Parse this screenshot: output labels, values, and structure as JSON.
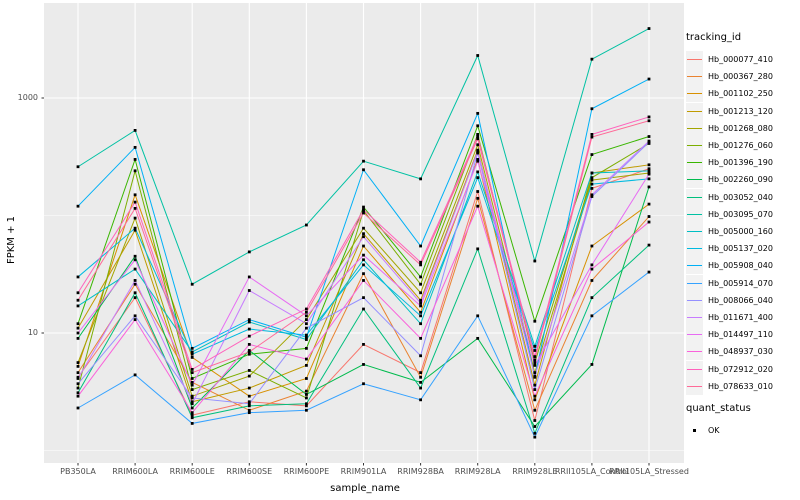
{
  "chart": {
    "y_axis_title": "FPKM + 1",
    "x_axis_title": "sample_name",
    "panel_background": "#EBEBEB",
    "gridline_color": "#FFFFFF",
    "tick_label_color": "#4D4D4D"
  },
  "legend": {
    "tracking_title": "tracking_id",
    "quant_title": "quant_status",
    "quant_items": [
      "OK"
    ]
  },
  "chart_data": {
    "type": "line",
    "title": "",
    "xlabel": "sample_name",
    "ylabel": "FPKM + 1",
    "y_scale": "log10",
    "y_tick_values": [
      10,
      1000
    ],
    "y_tick_labels": [
      "10",
      "1000"
    ],
    "y_minor_gridlines": [
      1,
      100
    ],
    "ylim_log10": [
      -0.1,
      3.8
    ],
    "grid": true,
    "legend_position": "right",
    "point_color": "#000000",
    "categories": [
      "PB350LA",
      "RRIM600LA",
      "RRIM600LE",
      "RRIM600SE",
      "RRIM600PE",
      "RRIM901LA",
      "RRIM928BA",
      "RRIM928LA",
      "RRIM928LE",
      "RRII105LA_Control",
      "RRII105LA_Stressed"
    ],
    "series": [
      {
        "name": "Hb_000077_410",
        "color": "#F8766D",
        "values": [
          4.2,
          20,
          2.0,
          2.6,
          2.4,
          8,
          4.6,
          160,
          1.8,
          170,
          250
        ]
      },
      {
        "name": "Hb_000367_280",
        "color": "#EA8331",
        "values": [
          4.6,
          26,
          3.8,
          2.2,
          3.2,
          32,
          4.2,
          140,
          2.2,
          28,
          98
        ]
      },
      {
        "name": "Hb_001102_250",
        "color": "#D89000",
        "values": [
          5.2,
          150,
          6.2,
          2.9,
          4.1,
          55,
          15,
          300,
          2.7,
          55,
          125
        ]
      },
      {
        "name": "Hb_001213_120",
        "color": "#C09B00",
        "values": [
          11,
          75,
          2.6,
          3.4,
          5.3,
          70,
          19,
          360,
          3.6,
          230,
          270
        ]
      },
      {
        "name": "Hb_001268_080",
        "color": "#A3A500",
        "values": [
          5.6,
          95,
          2.9,
          4.3,
          13,
          78,
          22,
          400,
          4.6,
          200,
          230
        ]
      },
      {
        "name": "Hb_001276_060",
        "color": "#7CAE00",
        "values": [
          3.4,
          240,
          3.3,
          4.8,
          2.8,
          110,
          26,
          490,
          5.6,
          210,
          410
        ]
      },
      {
        "name": "Hb_001396_190",
        "color": "#39B600",
        "values": [
          12,
          300,
          4.1,
          6.6,
          7.4,
          118,
          30,
          580,
          12.6,
          330,
          470
        ]
      },
      {
        "name": "Hb_002260_090",
        "color": "#00BB4E",
        "values": [
          9,
          45,
          2.3,
          7.1,
          3.0,
          5.4,
          3.8,
          9,
          1.6,
          5.4,
          175
        ]
      },
      {
        "name": "Hb_003052_040",
        "color": "#00BF7D",
        "values": [
          3.1,
          22,
          1.9,
          2.4,
          2.5,
          16,
          3.4,
          52,
          1.4,
          20,
          56
        ]
      },
      {
        "name": "Hb_003095_070",
        "color": "#00C1A3",
        "values": [
          260,
          530,
          26,
          49,
          83,
          290,
          205,
          2300,
          41,
          2140,
          3900
        ]
      },
      {
        "name": "Hb_005000_160",
        "color": "#00BFC4",
        "values": [
          17,
          35,
          6.9,
          12.4,
          8.8,
          42,
          12,
          235,
          7.7,
          230,
          240
        ]
      },
      {
        "name": "Hb_005137_020",
        "color": "#00BAE0",
        "values": [
          30,
          78,
          6.6,
          10.8,
          9.6,
          38,
          14,
          210,
          7.1,
          185,
          205
        ]
      },
      {
        "name": "Hb_005908_040",
        "color": "#00B0F6",
        "values": [
          120,
          380,
          7.4,
          13,
          9.2,
          245,
          55,
          740,
          4.2,
          810,
          1450
        ]
      },
      {
        "name": "Hb_005914_070",
        "color": "#35A2FF",
        "values": [
          2.3,
          4.4,
          1.7,
          2.1,
          2.2,
          3.7,
          2.7,
          14,
          1.3,
          14,
          33
        ]
      },
      {
        "name": "Hb_008066_040",
        "color": "#9590FF",
        "values": [
          3.7,
          14,
          2.8,
          2.5,
          11,
          20,
          6.4,
          340,
          3.3,
          145,
          420
        ]
      },
      {
        "name": "Hb_011671_400",
        "color": "#C77CFF",
        "values": [
          4.1,
          28,
          2.5,
          23,
          12,
          66,
          18,
          350,
          4.3,
          150,
          430
        ]
      },
      {
        "name": "Hb_014497_110",
        "color": "#E76BF3",
        "values": [
          10,
          42,
          3.6,
          30,
          14,
          46,
          17,
          290,
          5.3,
          38,
          225
        ]
      },
      {
        "name": "Hb_048937_030",
        "color": "#FA62DB",
        "values": [
          2.9,
          13,
          2.1,
          8,
          6,
          28,
          9,
          120,
          2.9,
          35,
          88
        ]
      },
      {
        "name": "Hb_072912_020",
        "color": "#FF62BC",
        "values": [
          22,
          130,
          4.9,
          9.4,
          16,
          112,
          40,
          470,
          6.3,
          490,
          690
        ]
      },
      {
        "name": "Hb_078633_010",
        "color": "#FF6A98",
        "values": [
          19,
          115,
          4.6,
          6.9,
          15,
          105,
          38,
          450,
          5.9,
          465,
          640
        ]
      }
    ]
  }
}
